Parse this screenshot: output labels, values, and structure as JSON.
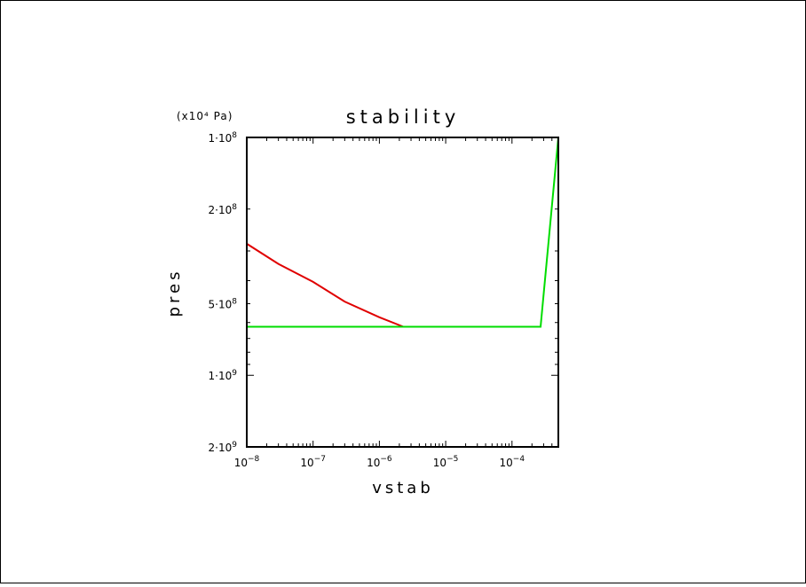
{
  "chart_data": {
    "type": "line",
    "title": "stability",
    "xlabel": "vstab",
    "ylabel": "pres",
    "y_unit_label": "(x10⁴ Pa)",
    "x_scale": "log",
    "y_scale": "log",
    "y_inverted": true,
    "xlim": [
      1e-08,
      0.0005
    ],
    "ylim": [
      100000000,
      2000000000
    ],
    "x_tick_labels": [
      {
        "value": 1e-08,
        "base": "10",
        "exp": "−8"
      },
      {
        "value": 1e-07,
        "base": "10",
        "exp": "−7"
      },
      {
        "value": 1e-06,
        "base": "10",
        "exp": "−6"
      },
      {
        "value": 1e-05,
        "base": "10",
        "exp": "−5"
      },
      {
        "value": 0.0001,
        "base": "10",
        "exp": "−4"
      }
    ],
    "y_tick_labels": [
      {
        "value": 100000000,
        "mant": "1·10",
        "exp": "8"
      },
      {
        "value": 200000000,
        "mant": "2·10",
        "exp": "8"
      },
      {
        "value": 500000000,
        "mant": "5·10",
        "exp": "8"
      },
      {
        "value": 1000000000,
        "mant": "1·10",
        "exp": "9"
      },
      {
        "value": 2000000000,
        "mant": "2·10",
        "exp": "9"
      }
    ],
    "series": [
      {
        "color": "#e00000",
        "points": [
          [
            1e-08,
            100000000
          ],
          [
            1e-08,
            280000000
          ],
          [
            3e-08,
            340000000
          ],
          [
            1e-07,
            405000000
          ],
          [
            3e-07,
            490000000
          ],
          [
            1e-06,
            570000000
          ],
          [
            2.3e-06,
            625000000
          ]
        ]
      },
      {
        "color": "#00dd00",
        "points": [
          [
            1e-08,
            2000000000
          ],
          [
            1e-08,
            625000000
          ],
          [
            2.3e-06,
            625000000
          ],
          [
            0.00027,
            625000000
          ],
          [
            0.0005,
            100000000
          ]
        ]
      }
    ]
  }
}
